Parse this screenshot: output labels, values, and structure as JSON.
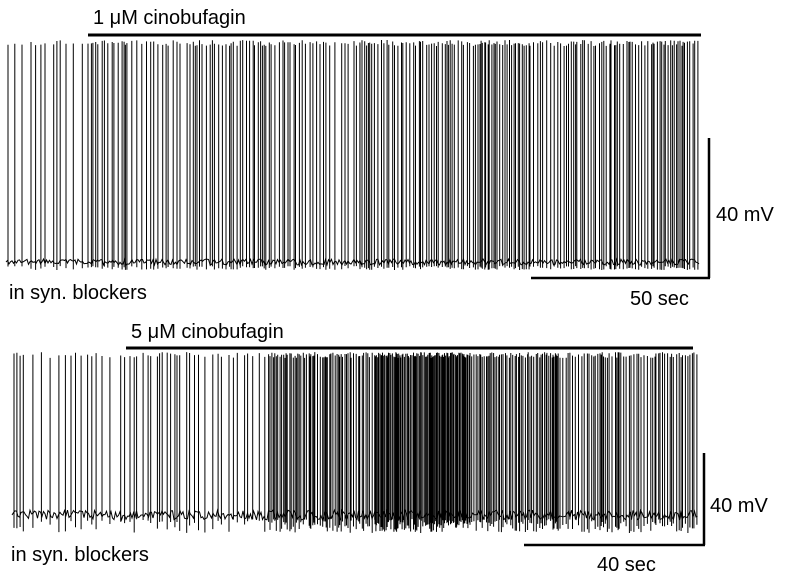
{
  "chart_data": [
    {
      "type": "line",
      "panel": "top",
      "drug_label": "1 μM cinobufagin",
      "condition_label": "in syn. blockers",
      "scale_bars": {
        "voltage": "40 mV",
        "time": "50 sec"
      },
      "trace": {
        "color": "#000000",
        "grid": false
      }
    },
    {
      "type": "line",
      "panel": "bottom",
      "drug_label": "5 μM cinobufagin",
      "condition_label": "in syn. blockers",
      "scale_bars": {
        "voltage": "40 mV",
        "time": "40 sec"
      },
      "trace": {
        "color": "#000000",
        "grid": false
      }
    }
  ]
}
